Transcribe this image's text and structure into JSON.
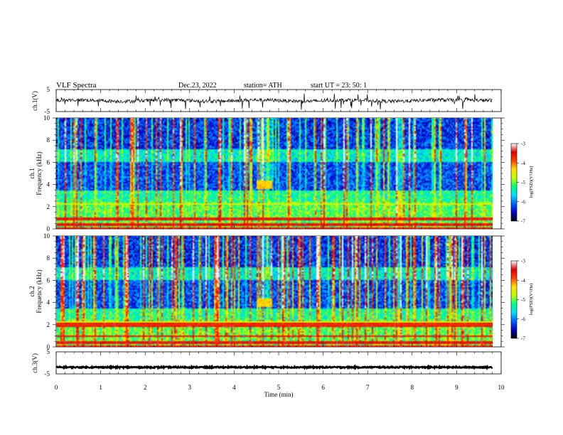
{
  "header": {
    "title": "VLF  Spectra",
    "date": "Dec.23, 2022",
    "station": "station= ATH",
    "start_ut": "start  UT  =    23: 50: 1"
  },
  "chart_data": [
    {
      "type": "line",
      "panel": "ch1-waveform",
      "ylabel": "ch.1(V)",
      "ylim": [
        -5,
        5
      ],
      "yticks": [
        "5",
        "-5"
      ],
      "xlim": [
        0,
        10
      ],
      "trace": {
        "baseline": 0,
        "color": "#000000"
      }
    },
    {
      "type": "heatmap",
      "panel": "ch1-spectrogram",
      "ylabel": "ch.1\nFrequency  (kHz)",
      "ylim": [
        0,
        10
      ],
      "yticks": [
        "0",
        "2",
        "4",
        "6",
        "8",
        "10"
      ],
      "xlim": [
        0,
        10
      ],
      "data_end_min": 9.8,
      "colorbar": {
        "label": "log(PSD)(V²/Hz)",
        "range": [
          -7,
          -3
        ],
        "ticks": [
          "-3",
          "-4",
          "-5",
          "-6",
          "-7"
        ],
        "colors": [
          "#000000",
          "#0000c8",
          "#0060ff",
          "#00e0ff",
          "#00ff80",
          "#c0ff00",
          "#ffe000",
          "#ff4000",
          "#e00000",
          "#ffffff"
        ]
      },
      "bright_patch": {
        "time_min": [
          4.5,
          4.85
        ],
        "freq_khz": [
          3.6,
          4.4
        ]
      },
      "steady_lines_khz": [
        0.1,
        0.3,
        0.5,
        0.8,
        1.0
      ]
    },
    {
      "type": "heatmap",
      "panel": "ch2-spectrogram",
      "ylabel": "ch.2\nFrequency  (kHz)",
      "ylim": [
        0,
        10
      ],
      "yticks": [
        "0",
        "2",
        "4",
        "6",
        "8",
        "10"
      ],
      "xlim": [
        0,
        10
      ],
      "data_end_min": 9.8,
      "colorbar": {
        "label": "log(PSD)(V²/Hz)",
        "range": [
          -7,
          -3
        ],
        "ticks": [
          "-3",
          "-4",
          "-5",
          "-6",
          "-7"
        ],
        "colors": [
          "#000000",
          "#0000c8",
          "#0060ff",
          "#00e0ff",
          "#00ff80",
          "#c0ff00",
          "#ffe000",
          "#ff4000",
          "#e00000",
          "#ffffff"
        ]
      },
      "bright_patch": {
        "time_min": [
          4.5,
          4.85
        ],
        "freq_khz": [
          3.6,
          4.4
        ]
      },
      "steady_lines_khz": [
        0.1,
        0.3,
        0.5,
        1.0,
        1.9,
        2.1
      ]
    },
    {
      "type": "line",
      "panel": "ch3-waveform",
      "ylabel": "ch.3(V)",
      "ylim": [
        -5,
        5
      ],
      "yticks": [
        "5",
        "-5"
      ],
      "xlim": [
        0,
        10
      ],
      "xlabel": "Time  (min)",
      "xticks": [
        "0",
        "1",
        "2",
        "3",
        "4",
        "5",
        "6",
        "7",
        "8",
        "9",
        "10"
      ],
      "trace": {
        "baseline": -2,
        "color": "#000000"
      }
    }
  ]
}
